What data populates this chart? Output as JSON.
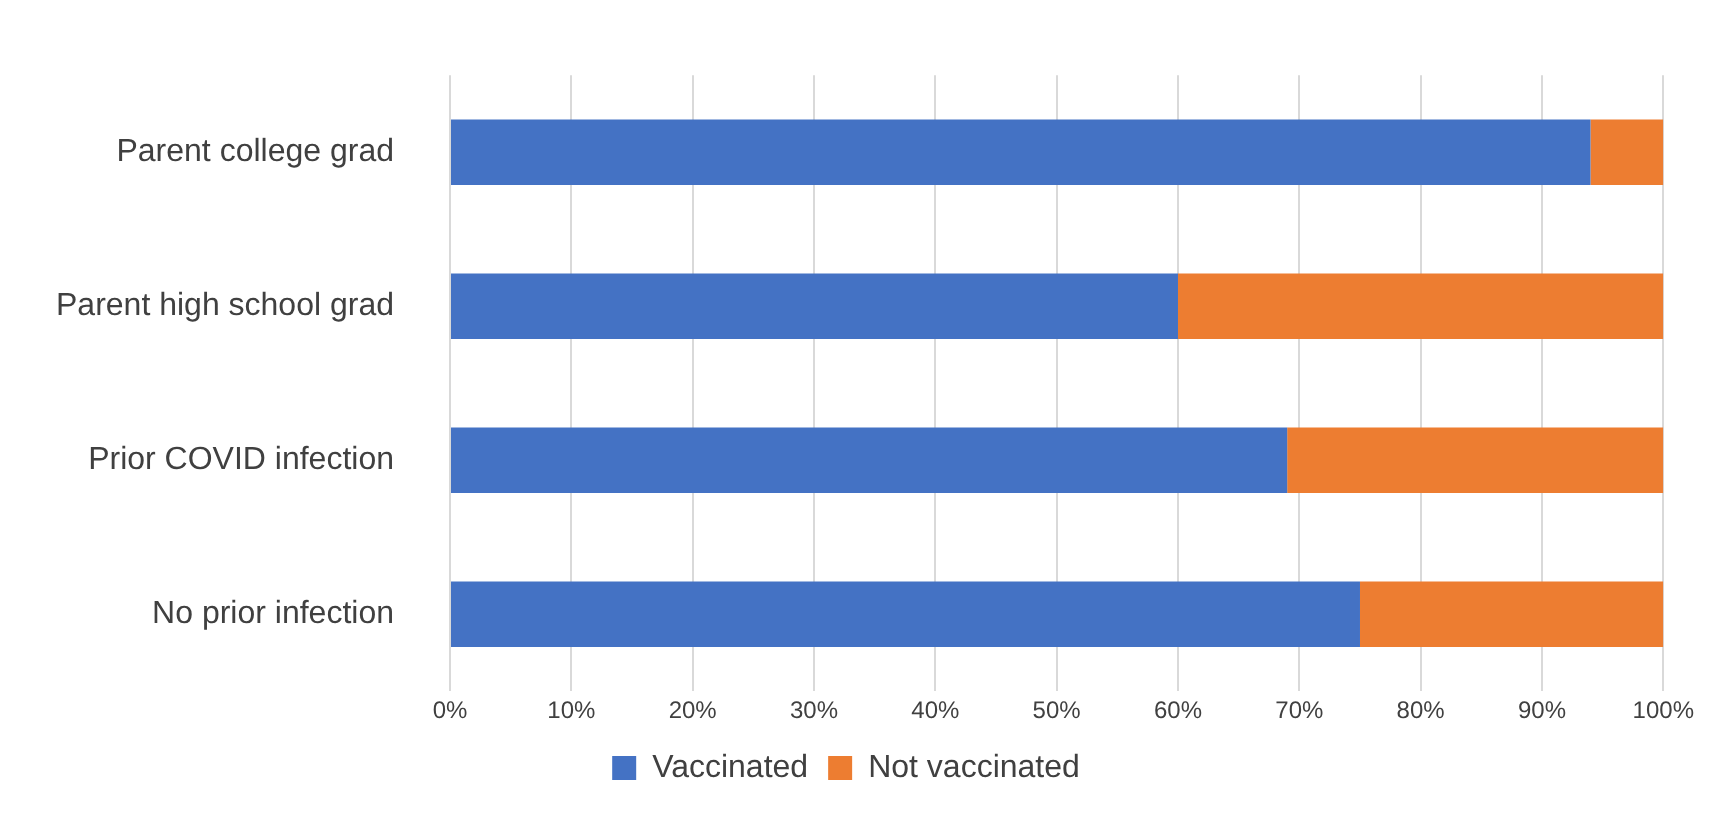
{
  "chart_data": {
    "type": "bar",
    "orientation": "horizontal",
    "stacked": true,
    "categories": [
      "Parent college grad",
      "Parent high school grad",
      "Prior COVID infection",
      "No prior infection"
    ],
    "series": [
      {
        "name": "Vaccinated",
        "color": "#4472c4",
        "values": [
          94,
          60,
          69,
          75
        ]
      },
      {
        "name": "Not vaccinated",
        "color": "#ed7d31",
        "values": [
          6,
          40,
          31,
          25
        ]
      }
    ],
    "xlim": [
      0,
      100
    ],
    "xticks": [
      {
        "value": 0,
        "label": "0%"
      },
      {
        "value": 10,
        "label": "10%"
      },
      {
        "value": 20,
        "label": "20%"
      },
      {
        "value": 30,
        "label": "30%"
      },
      {
        "value": 40,
        "label": "40%"
      },
      {
        "value": 50,
        "label": "50%"
      },
      {
        "value": 60,
        "label": "60%"
      },
      {
        "value": 70,
        "label": "70%"
      },
      {
        "value": 80,
        "label": "80%"
      },
      {
        "value": 90,
        "label": "90%"
      },
      {
        "value": 100,
        "label": "100%"
      }
    ],
    "grid": "x",
    "legend": "bottom"
  }
}
